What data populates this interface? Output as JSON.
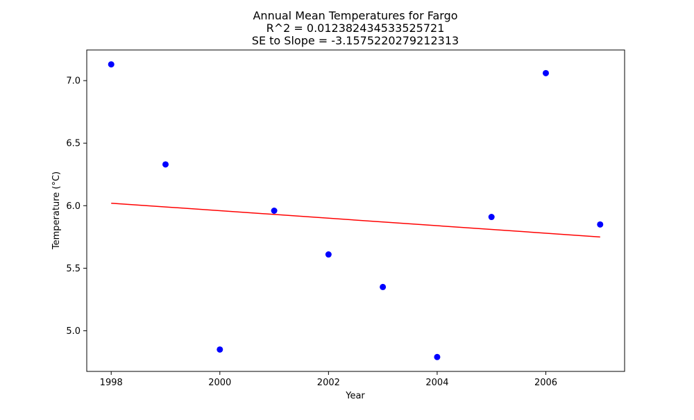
{
  "chart_data": {
    "type": "scatter",
    "title": "Annual Mean Temperatures for Fargo",
    "subtitle_lines": [
      "R^2 = 0.012382434533525721",
      "SE to Slope = -3.1575220279212313"
    ],
    "xlabel": "Year",
    "ylabel": "Temperature (°C)",
    "xlim": [
      1997.55,
      2007.45
    ],
    "ylim": [
      4.675,
      7.245
    ],
    "xticks": [
      1998,
      2000,
      2002,
      2004,
      2006
    ],
    "yticks": [
      5.0,
      5.5,
      6.0,
      6.5,
      7.0
    ],
    "ytick_labels": [
      "5.0",
      "5.5",
      "6.0",
      "6.5",
      "7.0"
    ],
    "grid": false,
    "series": [
      {
        "kind": "scatter",
        "color": "#0000ff",
        "x": [
          1998,
          1999,
          2000,
          2001,
          2002,
          2003,
          2004,
          2005,
          2006,
          2007
        ],
        "y": [
          7.13,
          6.33,
          4.85,
          5.96,
          5.61,
          5.35,
          4.79,
          5.91,
          7.06,
          5.85
        ]
      },
      {
        "kind": "line",
        "color": "#ff0000",
        "x": [
          1998,
          2007
        ],
        "y": [
          6.02,
          5.75
        ]
      }
    ]
  }
}
